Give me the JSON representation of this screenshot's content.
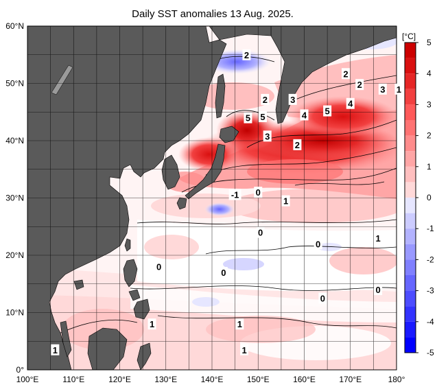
{
  "title": "Daily SST anomalies 13 Aug. 2025.",
  "axes": {
    "lon_ticks": [
      "100°E",
      "110°E",
      "120°E",
      "130°E",
      "140°E",
      "150°E",
      "160°E",
      "170°E",
      "180°"
    ],
    "lat_ticks": [
      "60°N",
      "50°N",
      "40°N",
      "30°N",
      "20°N",
      "10°N",
      "0°"
    ],
    "lon_range": [
      100,
      180
    ],
    "lat_range": [
      0,
      60
    ],
    "grid": true
  },
  "colorbar": {
    "unit": "[°C]",
    "range": [
      -5,
      5
    ],
    "ticks": [
      "5",
      "4",
      "3",
      "2",
      "1",
      "0",
      "-1",
      "-2",
      "-3",
      "-4",
      "-5"
    ],
    "colors_pos": [
      "#ffd9d9",
      "#ffbfbf",
      "#ffa6a6",
      "#ff8c8c",
      "#ff7373",
      "#ff5959",
      "#f24040",
      "#e62626",
      "#d91010",
      "#cc0000"
    ],
    "colors_neg": [
      "#e6e6ff",
      "#ccccff",
      "#b3b3ff",
      "#9999ff",
      "#8080ff",
      "#6666ff",
      "#4d4dff",
      "#3333ff",
      "#1a1aff",
      "#0000ff"
    ],
    "placement": "right"
  },
  "colors": {
    "land": "#5a5a5a",
    "grid": "#000000",
    "contour": "#000000"
  },
  "contour_labels": [
    {
      "text": "2",
      "lon": 147.5,
      "lat": 55.0
    },
    {
      "text": "2",
      "lon": 151.5,
      "lat": 47.2
    },
    {
      "text": "3",
      "lon": 157.5,
      "lat": 47.2
    },
    {
      "text": "4",
      "lon": 160.0,
      "lat": 44.5
    },
    {
      "text": "5",
      "lon": 165.0,
      "lat": 45.2
    },
    {
      "text": "4",
      "lon": 170.0,
      "lat": 46.5
    },
    {
      "text": "2",
      "lon": 169.0,
      "lat": 51.7
    },
    {
      "text": "2",
      "lon": 172.0,
      "lat": 49.8
    },
    {
      "text": "3",
      "lon": 177.0,
      "lat": 49.0
    },
    {
      "text": "1",
      "lon": 180.5,
      "lat": 49.0
    },
    {
      "text": "5",
      "lon": 147.8,
      "lat": 44.0
    },
    {
      "text": "5",
      "lon": 151.0,
      "lat": 44.2
    },
    {
      "text": "3",
      "lon": 152.0,
      "lat": 40.8
    },
    {
      "text": "2",
      "lon": 158.5,
      "lat": 39.3
    },
    {
      "text": "-1",
      "lon": 145.0,
      "lat": 30.6
    },
    {
      "text": "0",
      "lon": 150.0,
      "lat": 31.0
    },
    {
      "text": "1",
      "lon": 156.0,
      "lat": 29.5
    },
    {
      "text": "0",
      "lon": 150.5,
      "lat": 24.0
    },
    {
      "text": "0",
      "lon": 163.0,
      "lat": 22.0
    },
    {
      "text": "1",
      "lon": 176.0,
      "lat": 23.0
    },
    {
      "text": "0",
      "lon": 128.5,
      "lat": 18.0
    },
    {
      "text": "0",
      "lon": 142.5,
      "lat": 17.0
    },
    {
      "text": "0",
      "lon": 164.0,
      "lat": 12.5
    },
    {
      "text": "0",
      "lon": 176.0,
      "lat": 14.0
    },
    {
      "text": "1",
      "lon": 127.0,
      "lat": 8.0
    },
    {
      "text": "1",
      "lon": 146.0,
      "lat": 8.0
    },
    {
      "text": "1",
      "lon": 106.0,
      "lat": 3.5
    },
    {
      "text": "1",
      "lon": 147.0,
      "lat": 3.5
    }
  ]
}
